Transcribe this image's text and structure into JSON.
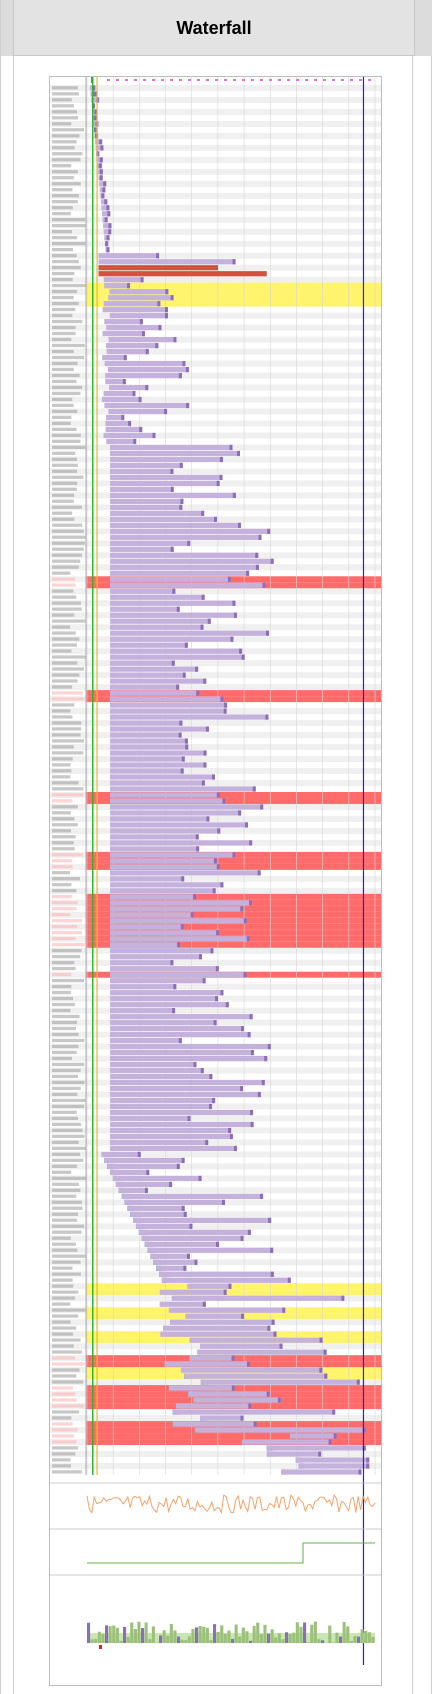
{
  "header": {
    "title": "Waterfall"
  },
  "waterfall": {
    "row_count": 232,
    "colors": {
      "request_bar": "#c4b1dc",
      "request_bar_dark": "#8d6db8",
      "error_row": "#ff6b6b",
      "highlight_row": "#fff46a",
      "dns": "#1f9e8f",
      "connect": "#f0a05a",
      "ssl": "#c65adf",
      "start_render": "#2bb02b",
      "dom_loaded": "#e0c020",
      "load_event": "#2222dd",
      "cpu": "#f4a36a",
      "bandwidth": "#66b04a"
    }
  }
}
